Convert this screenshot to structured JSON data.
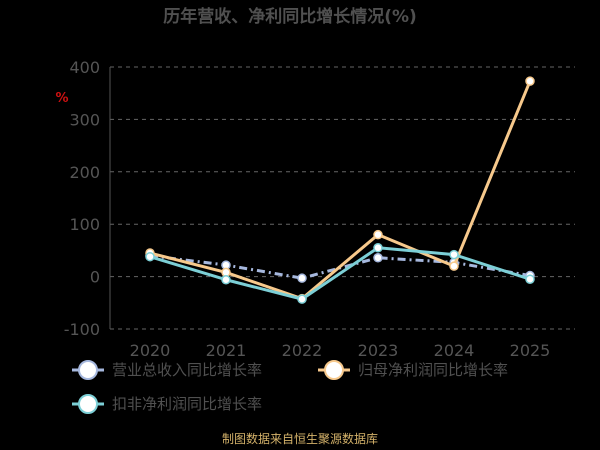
{
  "chart_data": {
    "type": "line",
    "title": "历年营收、净利同比增长情况(%)",
    "unit": "%",
    "xlabel": "",
    "ylabel": "",
    "categories": [
      "2020",
      "2021",
      "2022",
      "2023",
      "2024",
      "2025"
    ],
    "ylim": [
      -100,
      400
    ],
    "yticks": [
      400,
      300,
      200,
      100,
      0,
      -100
    ],
    "grid": true,
    "legend_position": "bottom",
    "series": [
      {
        "name": "营业总收入同比增长率",
        "color": "#a6b8de",
        "dashed": true,
        "values": [
          40,
          22,
          -3,
          36,
          27,
          2
        ]
      },
      {
        "name": "归母净利润同比增长率",
        "color": "#f7c98c",
        "dashed": false,
        "values": [
          45,
          8,
          -42,
          80,
          20,
          373
        ]
      },
      {
        "name": "扣非净利润同比增长率",
        "color": "#7ccfd6",
        "dashed": false,
        "values": [
          38,
          -6,
          -43,
          55,
          42,
          -5
        ]
      }
    ],
    "source": "制图数据来自恒生聚源数据库"
  }
}
